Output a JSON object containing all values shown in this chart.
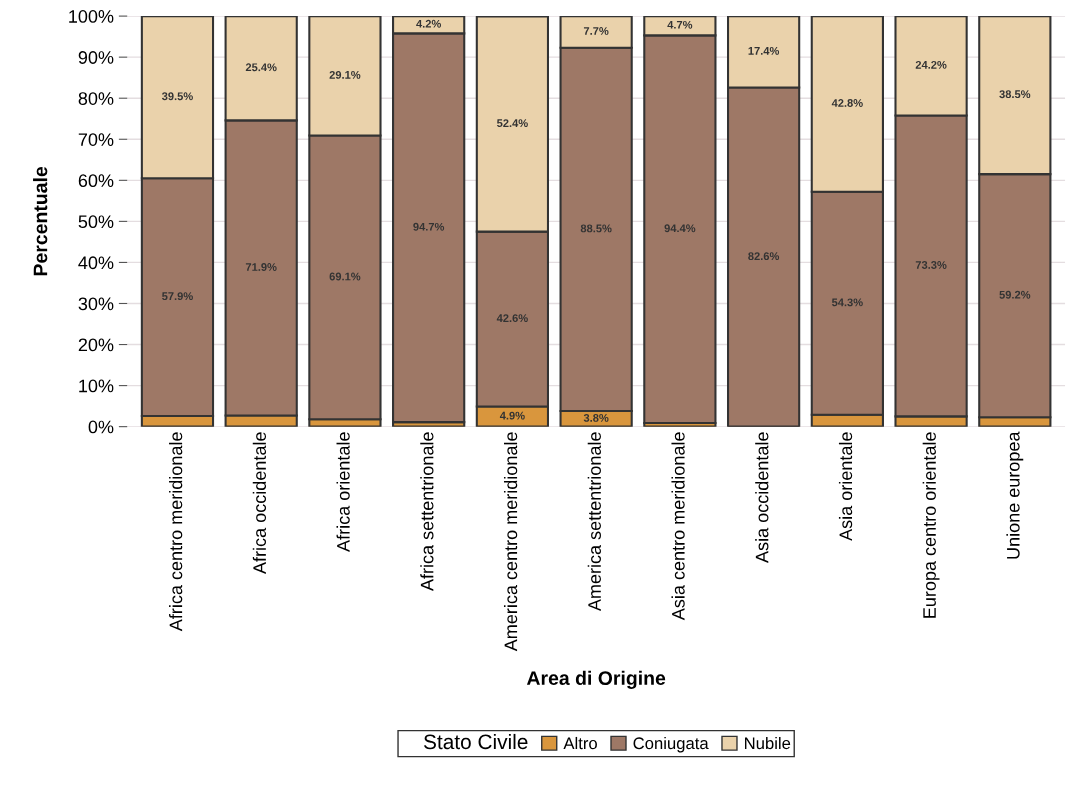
{
  "chart_data": {
    "type": "bar",
    "stacked": true,
    "xlabel": "Area di Origine",
    "ylabel": "Percentuale",
    "legend_title": "Stato Civile",
    "legend": "bottom",
    "grid": "y",
    "categories": [
      "Africa centro meridionale",
      "Africa occidentale",
      "Africa orientale",
      "Africa settentrionale",
      "America centro meridionale",
      "America settentrionale",
      "Asia centro meridionale",
      "Asia occidentale",
      "Asia orientale",
      "Europa centro orientale",
      "Unione europea"
    ],
    "ylim": [
      0,
      100
    ],
    "yticks": [
      {
        "value": 0,
        "label": "0%"
      },
      {
        "value": 10,
        "label": "10%"
      },
      {
        "value": 20,
        "label": "20%"
      },
      {
        "value": 30,
        "label": "30%"
      },
      {
        "value": 40,
        "label": "40%"
      },
      {
        "value": 50,
        "label": "50%"
      },
      {
        "value": 60,
        "label": "60%"
      },
      {
        "value": 70,
        "label": "70%"
      },
      {
        "value": 80,
        "label": "80%"
      },
      {
        "value": 90,
        "label": "90%"
      },
      {
        "value": 100,
        "label": "100%"
      }
    ],
    "series": [
      {
        "name": "Altro",
        "color": "#d9963d",
        "values": [
          2.6,
          2.7,
          1.8,
          1.1,
          4.9,
          3.8,
          0.9,
          0,
          2.9,
          2.5,
          2.3
        ],
        "value_labels": [
          null,
          null,
          null,
          null,
          "4.9%",
          "3.8%",
          null,
          null,
          null,
          null,
          null
        ]
      },
      {
        "name": "Coniugata",
        "color": "#9e7866",
        "values": [
          57.9,
          71.9,
          69.1,
          94.7,
          42.6,
          88.5,
          94.4,
          82.6,
          54.3,
          73.3,
          59.2
        ],
        "value_labels": [
          "57.9%",
          "71.9%",
          "69.1%",
          "94.7%",
          "42.6%",
          "88.5%",
          "94.4%",
          "82.6%",
          "54.3%",
          "73.3%",
          "59.2%"
        ]
      },
      {
        "name": "Nubile",
        "color": "#ead2ab",
        "values": [
          39.5,
          25.4,
          29.1,
          4.2,
          52.4,
          7.7,
          4.7,
          17.4,
          42.8,
          24.2,
          38.5
        ],
        "value_labels": [
          "39.5%",
          "25.4%",
          "29.1%",
          "4.2%",
          "52.4%",
          "7.7%",
          "4.7%",
          "17.4%",
          "42.8%",
          "24.2%",
          "38.5%"
        ]
      }
    ]
  }
}
